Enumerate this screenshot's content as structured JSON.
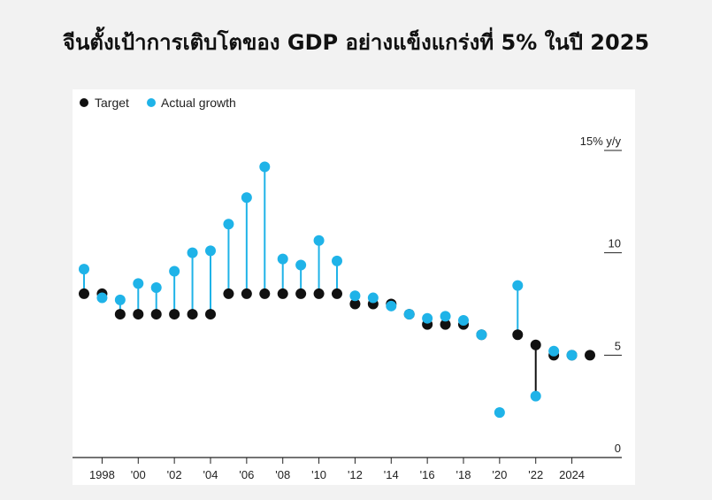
{
  "page": {
    "title": "จีนตั้งเป้าการเติบโตของ GDP อย่างแข็งแกร่งที่ 5% ในปี 2025"
  },
  "chart_data": {
    "type": "scatter",
    "title": "จีนตั้งเป้าการเติบโตของ GDP อย่างแข็งแกร่งที่ 5% ในปี 2025",
    "xlabel": "",
    "ylabel": "",
    "xlim": [
      1997,
      2025
    ],
    "ylim": [
      0,
      15
    ],
    "y_unit_label": "15% y/y",
    "y_ticks": [
      {
        "value": 0,
        "label": "0"
      },
      {
        "value": 5,
        "label": "5"
      },
      {
        "value": 10,
        "label": "10"
      },
      {
        "value": 15,
        "label": "15% y/y"
      }
    ],
    "x_ticks": [
      {
        "value": 1998,
        "label": "1998"
      },
      {
        "value": 2000,
        "label": "'00"
      },
      {
        "value": 2002,
        "label": "'02"
      },
      {
        "value": 2004,
        "label": "'04"
      },
      {
        "value": 2006,
        "label": "'06"
      },
      {
        "value": 2008,
        "label": "'08"
      },
      {
        "value": 2010,
        "label": "'10"
      },
      {
        "value": 2012,
        "label": "'12"
      },
      {
        "value": 2014,
        "label": "'14"
      },
      {
        "value": 2016,
        "label": "'16"
      },
      {
        "value": 2018,
        "label": "'18"
      },
      {
        "value": 2020,
        "label": "'20"
      },
      {
        "value": 2022,
        "label": "'22"
      },
      {
        "value": 2024,
        "label": "2024"
      }
    ],
    "legend_position": "top-left",
    "grid": false,
    "colors": {
      "target": "#111111",
      "actual": "#1fb3e8"
    },
    "series": [
      {
        "name": "Target",
        "x": [
          1997,
          1998,
          1999,
          2000,
          2001,
          2002,
          2003,
          2004,
          2005,
          2006,
          2007,
          2008,
          2009,
          2010,
          2011,
          2012,
          2013,
          2014,
          2015,
          2016,
          2017,
          2018,
          2019,
          2020,
          2021,
          2022,
          2023,
          2024,
          2025
        ],
        "values": [
          8,
          8,
          7,
          7,
          7,
          7,
          7,
          7,
          8,
          8,
          8,
          8,
          8,
          8,
          8,
          7.5,
          7.5,
          7.5,
          7,
          6.5,
          6.5,
          6.5,
          6,
          null,
          6,
          5.5,
          5,
          5,
          5
        ]
      },
      {
        "name": "Actual growth",
        "x": [
          1997,
          1998,
          1999,
          2000,
          2001,
          2002,
          2003,
          2004,
          2005,
          2006,
          2007,
          2008,
          2009,
          2010,
          2011,
          2012,
          2013,
          2014,
          2015,
          2016,
          2017,
          2018,
          2019,
          2020,
          2021,
          2022,
          2023,
          2024,
          2025
        ],
        "values": [
          9.2,
          7.8,
          7.7,
          8.5,
          8.3,
          9.1,
          10.0,
          10.1,
          11.4,
          12.7,
          14.2,
          9.7,
          9.4,
          10.6,
          9.6,
          7.9,
          7.8,
          7.4,
          7.0,
          6.8,
          6.9,
          6.7,
          6.0,
          2.2,
          8.4,
          3.0,
          5.2,
          5.0,
          null
        ]
      }
    ]
  }
}
